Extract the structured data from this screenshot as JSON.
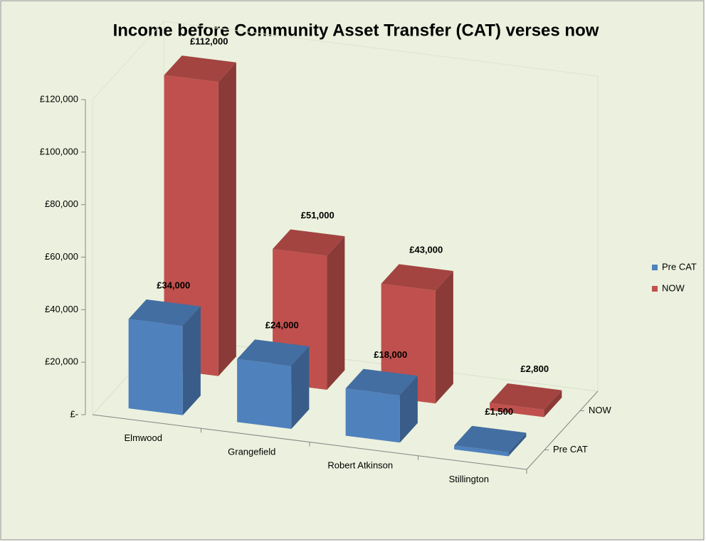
{
  "chart_data": {
    "type": "bar3d",
    "title": "Income before Community Asset Transfer (CAT) verses now",
    "categories": [
      "Elmwood",
      "Grangefield",
      "Robert Atkinson",
      "Stillington"
    ],
    "series": [
      {
        "name": "Pre CAT",
        "color": "#4f81bd",
        "values": [
          34000,
          24000,
          18000,
          1500
        ],
        "value_labels": [
          "£34,000",
          "£24,000",
          "£18,000",
          "£1,500"
        ]
      },
      {
        "name": "NOW",
        "color": "#c0504d",
        "values": [
          112000,
          51000,
          43000,
          2800
        ],
        "value_labels": [
          "£112,000",
          "£51,000",
          "£43,000",
          "£2,800"
        ]
      }
    ],
    "ylim": [
      0,
      120000
    ],
    "yticks": [
      {
        "value": 0,
        "label": "£-"
      },
      {
        "value": 20000,
        "label": "£20,000"
      },
      {
        "value": 40000,
        "label": "£40,000"
      },
      {
        "value": 60000,
        "label": "£60,000"
      },
      {
        "value": 80000,
        "label": "£80,000"
      },
      {
        "value": 100000,
        "label": "£100,000"
      },
      {
        "value": 120000,
        "label": "£120,000"
      }
    ],
    "grid": false,
    "legend": "right"
  }
}
